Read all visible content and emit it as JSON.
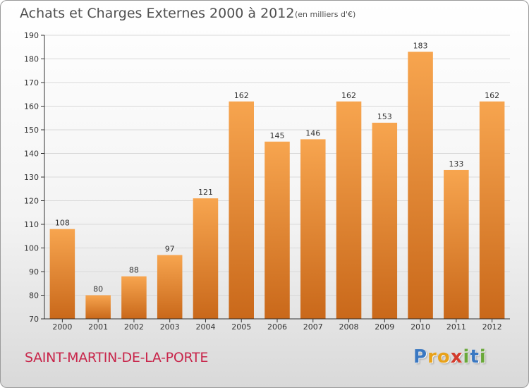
{
  "header": {
    "title": "Achats et Charges Externes 2000 à 2012",
    "unit": "(en milliers d'€)"
  },
  "footer": {
    "commune": "SAINT-MARTIN-DE-LA-PORTE",
    "logo_letters": [
      "P",
      "r",
      "o",
      "x",
      "i",
      "t",
      "i"
    ],
    "logo_colors": [
      "#3a78c2",
      "#e8a21b",
      "#e8a21b",
      "#d33b2c",
      "#6aa83a",
      "#3a78c2",
      "#6aa83a"
    ]
  },
  "colors": {
    "bar_top": "#f7a54f",
    "bar_bottom": "#c9681a",
    "grid": "#d9d9d9",
    "axis": "#333333",
    "text": "#333333"
  },
  "chart_data": {
    "type": "bar",
    "categories": [
      "2000",
      "2001",
      "2002",
      "2003",
      "2004",
      "2005",
      "2006",
      "2007",
      "2008",
      "2009",
      "2010",
      "2011",
      "2012"
    ],
    "values": [
      108,
      80,
      88,
      97,
      121,
      162,
      145,
      146,
      162,
      153,
      183,
      133,
      162
    ],
    "title": "Achats et Charges Externes 2000 à 2012",
    "ylim": [
      70,
      190
    ],
    "yticks": [
      70,
      80,
      90,
      100,
      110,
      120,
      130,
      140,
      150,
      160,
      170,
      180,
      190
    ],
    "grid": true,
    "data_labels": true
  }
}
